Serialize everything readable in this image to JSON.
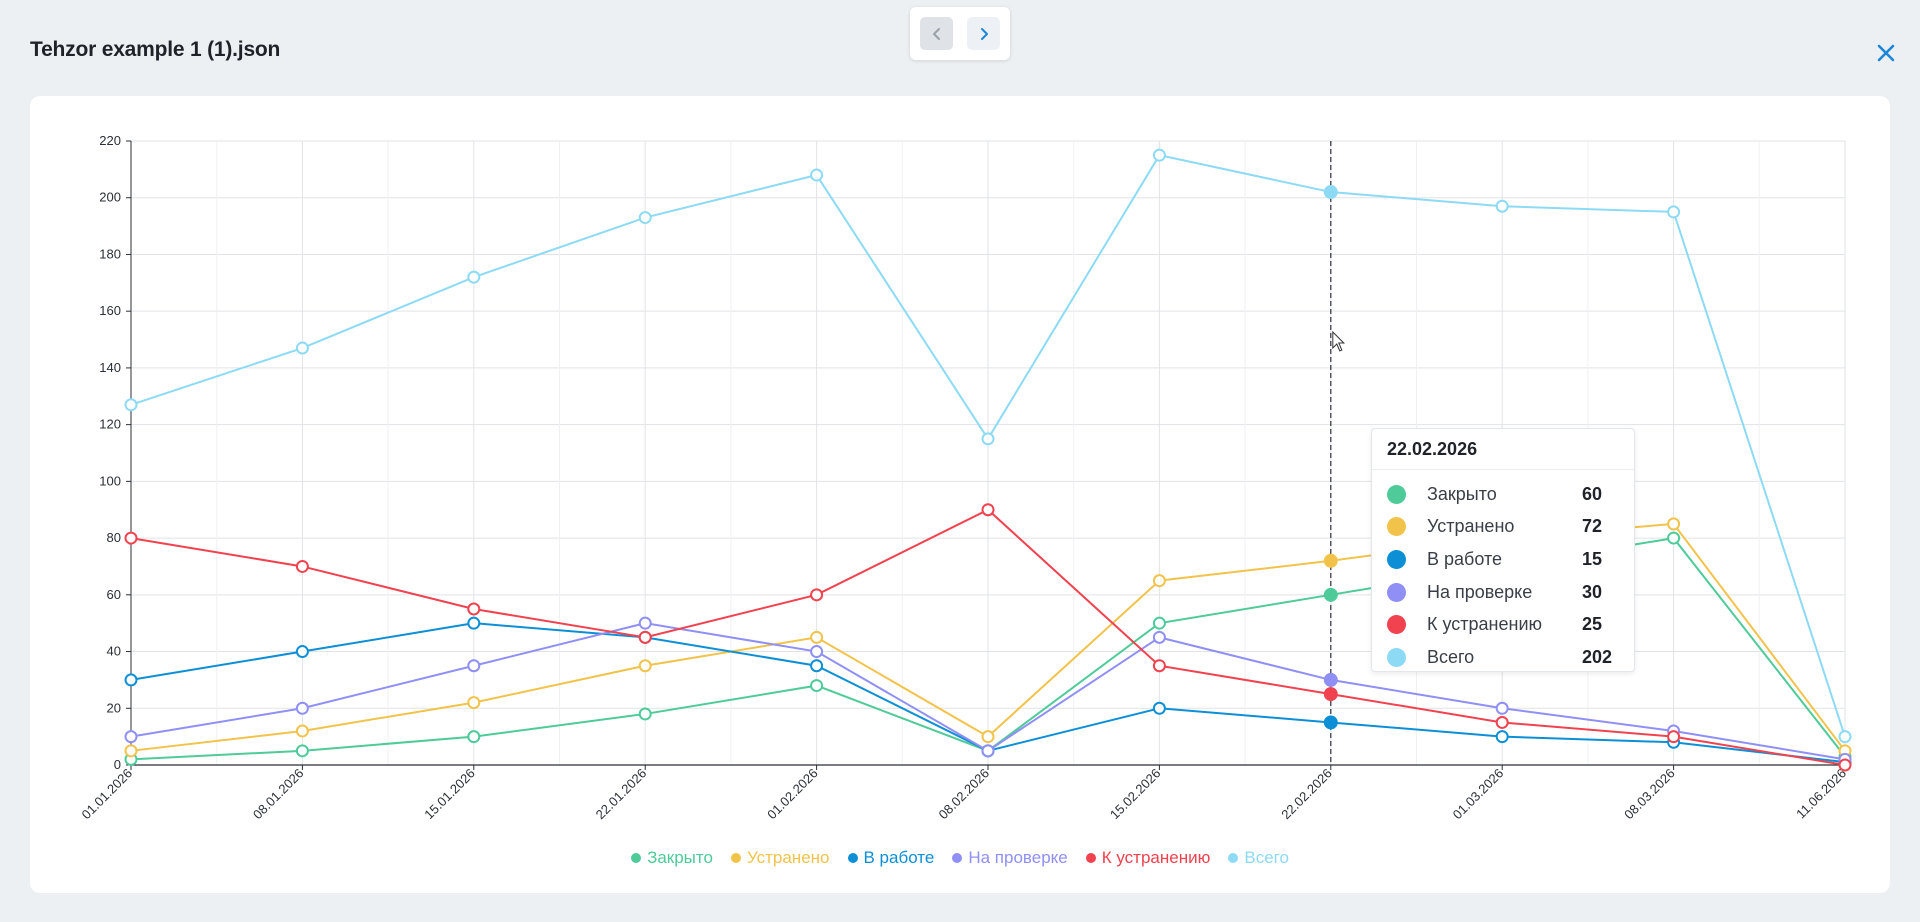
{
  "window": {
    "title": "Tehzor example 1 (1).json"
  },
  "icons": {
    "prev": "chevron-left-icon",
    "next": "chevron-right-icon",
    "close": "close-icon"
  },
  "colors": {
    "accent": "#1b87d6",
    "closed": "#4ecb99",
    "fixed": "#f2c34b",
    "in_work": "#0d8fd6",
    "on_check": "#8f8ff5",
    "to_fix": "#f0424f",
    "total": "#8ddaf5"
  },
  "chart_data": {
    "type": "line",
    "x": [
      "01.01.2026",
      "08.01.2026",
      "15.01.2026",
      "22.01.2026",
      "01.02.2026",
      "08.02.2026",
      "15.02.2026",
      "22.02.2026",
      "01.03.2026",
      "08.03.2026",
      "11.06.2026"
    ],
    "ylim": [
      0,
      220
    ],
    "yticks": [
      0,
      20,
      40,
      60,
      80,
      100,
      120,
      140,
      160,
      180,
      200,
      220
    ],
    "grid": true,
    "legend": "bottom-center",
    "series": [
      {
        "name": "Закрыто",
        "color": "#4ecb99",
        "values": [
          2,
          5,
          10,
          18,
          28,
          5,
          50,
          60,
          70,
          80,
          3
        ]
      },
      {
        "name": "Устранено",
        "color": "#f2c34b",
        "values": [
          5,
          12,
          22,
          35,
          45,
          10,
          65,
          72,
          80,
          85,
          5
        ]
      },
      {
        "name": "В работе",
        "color": "#0d8fd6",
        "values": [
          30,
          40,
          50,
          45,
          35,
          5,
          20,
          15,
          10,
          8,
          1
        ]
      },
      {
        "name": "На проверке",
        "color": "#8f8ff5",
        "values": [
          10,
          20,
          35,
          50,
          40,
          5,
          45,
          30,
          20,
          12,
          2
        ]
      },
      {
        "name": "К устранению",
        "color": "#f0424f",
        "values": [
          80,
          70,
          55,
          45,
          60,
          90,
          35,
          25,
          15,
          10,
          0
        ]
      },
      {
        "name": "Всего",
        "color": "#8ddaf5",
        "values": [
          127,
          147,
          172,
          193,
          208,
          115,
          215,
          202,
          197,
          195,
          10
        ]
      }
    ],
    "hover": {
      "index": 7,
      "date": "22.02.2026",
      "rows": [
        {
          "name": "Закрыто",
          "color": "#4ecb99",
          "value": "60"
        },
        {
          "name": "Устранено",
          "color": "#f2c34b",
          "value": "72"
        },
        {
          "name": "В работе",
          "color": "#0d8fd6",
          "value": "15"
        },
        {
          "name": "На проверке",
          "color": "#8f8ff5",
          "value": "30"
        },
        {
          "name": "К устранению",
          "color": "#f0424f",
          "value": "25"
        },
        {
          "name": "Всего",
          "color": "#8ddaf5",
          "value": "202"
        }
      ]
    }
  }
}
